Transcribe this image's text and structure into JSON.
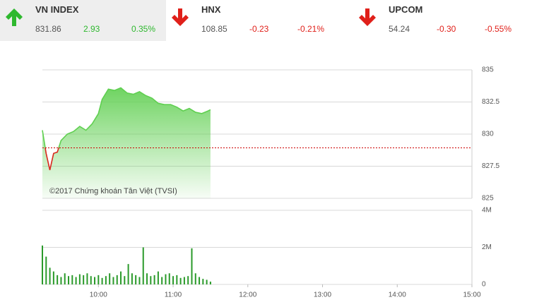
{
  "indices": [
    {
      "name": "VN INDEX",
      "price": "831.86",
      "change": "2.93",
      "percent": "0.35%",
      "direction": "up"
    },
    {
      "name": "HNX",
      "price": "108.85",
      "change": "-0.23",
      "percent": "-0.21%",
      "direction": "down"
    },
    {
      "name": "UPCOM",
      "price": "54.24",
      "change": "-0.30",
      "percent": "-0.55%",
      "direction": "down"
    }
  ],
  "chart_data": [
    {
      "type": "area",
      "annotation": "©2017 Chứng khoán Tân Việt (TVSI)",
      "x": [
        555,
        558,
        561,
        564,
        567,
        570,
        575,
        580,
        585,
        590,
        595,
        600,
        603,
        608,
        613,
        618,
        623,
        628,
        633,
        638,
        643,
        648,
        653,
        658,
        663,
        668,
        673,
        678,
        683,
        688,
        690
      ],
      "values": [
        830.3,
        828.5,
        827.2,
        828.5,
        828.6,
        829.5,
        830.0,
        830.2,
        830.6,
        830.3,
        830.8,
        831.6,
        832.7,
        833.5,
        833.4,
        833.6,
        833.2,
        833.1,
        833.3,
        833.0,
        832.8,
        832.4,
        832.3,
        832.3,
        832.1,
        831.8,
        832.0,
        831.7,
        831.6,
        831.8,
        831.9
      ],
      "reference": 828.93,
      "color": "#5fcf50",
      "down_color": "#d9261c",
      "xlim": [
        555,
        900
      ],
      "ylim": [
        825,
        835
      ],
      "yticks": [
        825,
        827.5,
        830,
        832.5,
        835
      ],
      "grid": true
    },
    {
      "type": "bar",
      "x": [
        555,
        558,
        561,
        564,
        567,
        570,
        573,
        576,
        579,
        582,
        585,
        588,
        591,
        594,
        597,
        600,
        603,
        606,
        609,
        612,
        615,
        618,
        621,
        624,
        627,
        630,
        633,
        636,
        639,
        642,
        645,
        648,
        651,
        654,
        657,
        660,
        663,
        666,
        669,
        672,
        675,
        678,
        681,
        684,
        687,
        690
      ],
      "values": [
        2100000,
        1500000,
        900000,
        700000,
        500000,
        400000,
        600000,
        450000,
        500000,
        400000,
        550000,
        500000,
        600000,
        450000,
        400000,
        500000,
        350000,
        450000,
        600000,
        400000,
        500000,
        700000,
        450000,
        1100000,
        600000,
        500000,
        400000,
        2000000,
        600000,
        450000,
        500000,
        700000,
        400000,
        550000,
        600000,
        450000,
        500000,
        350000,
        400000,
        450000,
        1950000,
        600000,
        400000,
        300000,
        250000,
        150000
      ],
      "color": "#2a9a2a",
      "xlim": [
        555,
        900
      ],
      "ylim": [
        0,
        4000000
      ],
      "yticks": [
        0,
        {
          "value": 2000000,
          "label": "2M"
        },
        {
          "value": 4000000,
          "label": "4M"
        }
      ],
      "xticks": [
        {
          "value": 600,
          "label": "10:00"
        },
        {
          "value": 660,
          "label": "11:00"
        },
        {
          "value": 720,
          "label": "12:00"
        },
        {
          "value": 780,
          "label": "13:00"
        },
        {
          "value": 840,
          "label": "14:00"
        },
        {
          "value": 900,
          "label": "15:00"
        }
      ],
      "grid": true
    }
  ]
}
